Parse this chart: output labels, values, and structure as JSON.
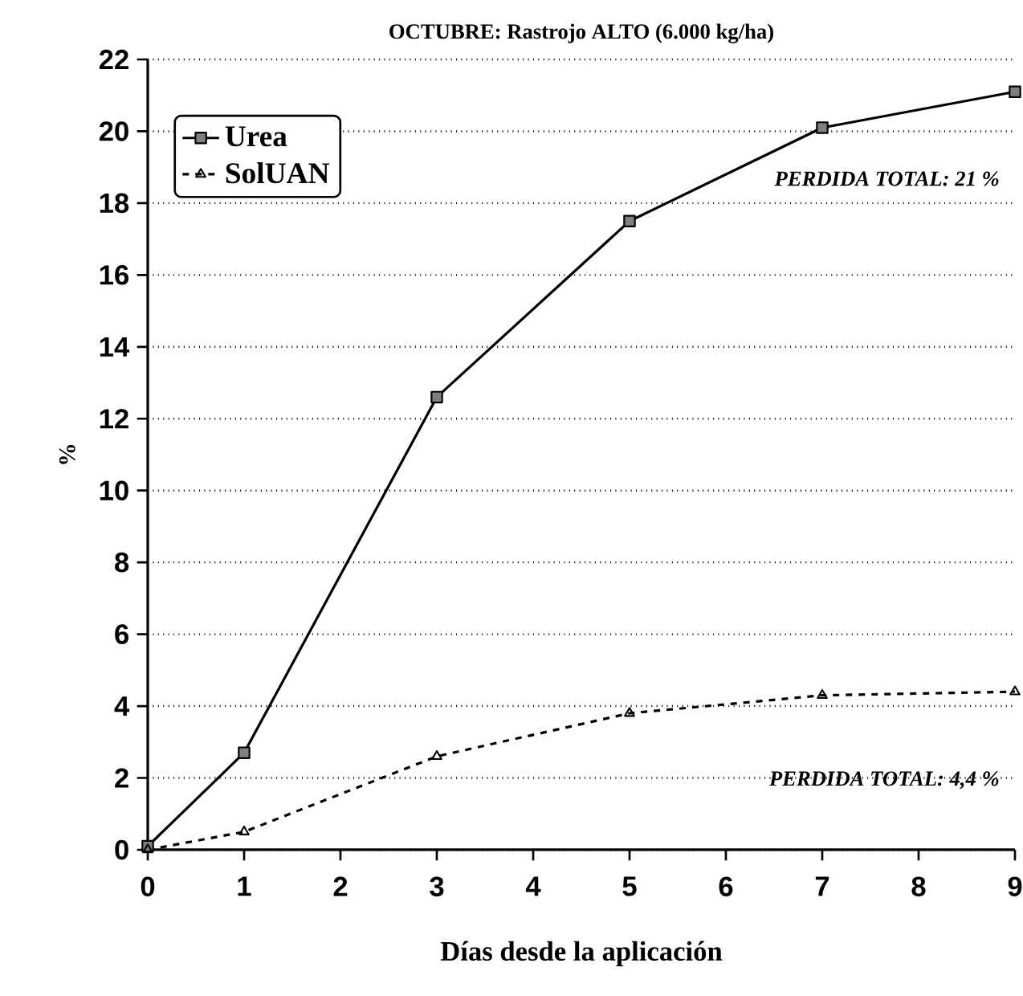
{
  "chart_data": {
    "type": "line",
    "title": "OCTUBRE: Rastrojo ALTO (6.000 kg/ha)",
    "xlabel": "Días desde la aplicación",
    "ylabel": "%",
    "x": [
      0,
      1,
      3,
      5,
      7,
      9
    ],
    "series": [
      {
        "name": "Urea",
        "color": "#000000",
        "values": [
          0.1,
          2.7,
          12.6,
          17.5,
          20.1,
          21.1
        ],
        "marker": "square",
        "line_style": "solid"
      },
      {
        "name": "SolUAN",
        "color": "#000000",
        "values": [
          0,
          0.5,
          2.6,
          3.8,
          4.3,
          4.4
        ],
        "marker": "triangle",
        "line_style": "dashed"
      }
    ],
    "annotations": [
      "PERDIDA TOTAL: 21 %",
      "PERDIDA TOTAL: 4,4 %"
    ],
    "xlim": [
      0,
      9
    ],
    "xticks": [
      0,
      1,
      2,
      3,
      4,
      5,
      6,
      7,
      8,
      9
    ],
    "ylim": [
      0,
      22
    ],
    "yticks": [
      0,
      2,
      4,
      6,
      8,
      10,
      12,
      14,
      16,
      18,
      20,
      22
    ],
    "grid": "y",
    "legend": "top left"
  }
}
